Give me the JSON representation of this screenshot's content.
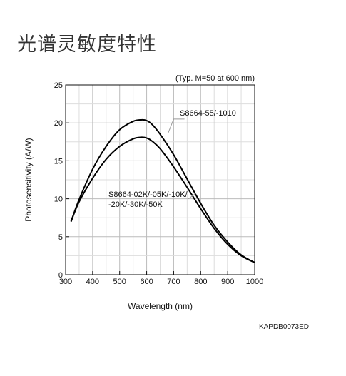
{
  "page": {
    "title": "光谱灵敏度特性",
    "figure_code": "KAPDB0073ED"
  },
  "chart_data": {
    "type": "line",
    "note": "(Typ. M=50 at 600 nm)",
    "xlabel": "Wavelength (nm)",
    "ylabel": "Photosensitivity (A/W)",
    "xlim": [
      300,
      1000
    ],
    "ylim": [
      0,
      25
    ],
    "xticks": [
      300,
      400,
      500,
      600,
      700,
      800,
      900,
      1000
    ],
    "yticks": [
      0,
      5,
      10,
      15,
      20,
      25
    ],
    "grid": true,
    "series": [
      {
        "name": "S8664-55/-1010",
        "x": [
          320,
          350,
          400,
          450,
          500,
          550,
          580,
          600,
          620,
          650,
          700,
          750,
          800,
          850,
          900,
          950,
          1000
        ],
        "y": [
          7.0,
          9.9,
          13.9,
          16.9,
          19.1,
          20.2,
          20.4,
          20.3,
          19.8,
          18.5,
          15.8,
          12.6,
          9.4,
          6.5,
          4.3,
          2.6,
          1.6
        ]
      },
      {
        "name": "S8664-02K/-05K/-10K/\n-20K/-30K/-50K",
        "x": [
          320,
          350,
          400,
          450,
          500,
          550,
          580,
          600,
          620,
          650,
          700,
          750,
          800,
          850,
          900,
          950,
          1000
        ],
        "y": [
          7.0,
          9.6,
          12.7,
          15.2,
          16.9,
          17.9,
          18.1,
          18.0,
          17.6,
          16.6,
          14.2,
          11.5,
          8.7,
          6.1,
          4.0,
          2.5,
          1.6
        ]
      }
    ],
    "labels": [
      {
        "text": "S8664-55/-1010",
        "series": 0
      },
      {
        "text_lines": [
          "S8664-02K/-05K/-10K/",
          "-20K/-30K/-50K"
        ],
        "series": 1
      }
    ]
  }
}
